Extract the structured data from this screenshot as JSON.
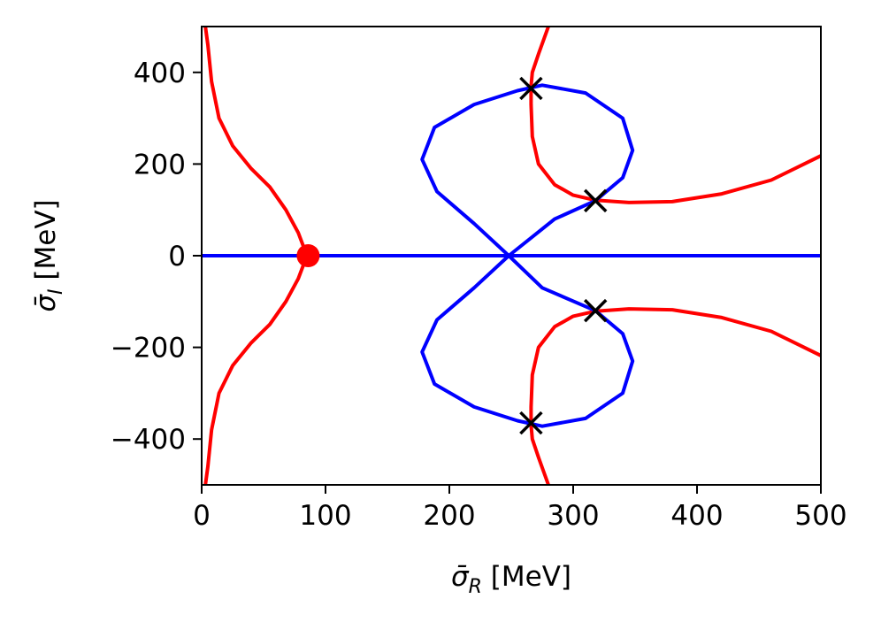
{
  "chart_data": {
    "type": "line",
    "title": "",
    "xlabel_parts": {
      "main": "σ̄",
      "sub": "R",
      "unit": " [MeV]"
    },
    "ylabel_parts": {
      "main": "σ̄",
      "sub": "I",
      "unit": " [MeV]"
    },
    "xlim": [
      0,
      500
    ],
    "ylim": [
      -500,
      500
    ],
    "xticks": [
      0,
      100,
      200,
      300,
      400,
      500
    ],
    "yticks": [
      -400,
      -200,
      0,
      200,
      400
    ],
    "xtick_labels": [
      "0",
      "100",
      "200",
      "300",
      "400",
      "500"
    ],
    "ytick_labels": [
      "−400",
      "−200",
      "0",
      "200",
      "400"
    ],
    "grid": false,
    "colors": {
      "red": "#ff0000",
      "blue": "#0000ff",
      "marker": "#000000"
    },
    "series": [
      {
        "color": "red",
        "points": [
          [
            3,
            500
          ],
          [
            5,
            460
          ],
          [
            8,
            380
          ],
          [
            14,
            300
          ],
          [
            25,
            240
          ],
          [
            40,
            190
          ],
          [
            55,
            150
          ],
          [
            68,
            100
          ],
          [
            78,
            50
          ],
          [
            85,
            0
          ],
          [
            78,
            -50
          ],
          [
            68,
            -100
          ],
          [
            55,
            -150
          ],
          [
            40,
            -190
          ],
          [
            25,
            -240
          ],
          [
            14,
            -300
          ],
          [
            8,
            -380
          ],
          [
            5,
            -460
          ],
          [
            3,
            -500
          ]
        ]
      },
      {
        "color": "red",
        "points": [
          [
            280,
            500
          ],
          [
            272,
            440
          ],
          [
            267,
            400
          ],
          [
            266,
            370
          ],
          [
            266,
            330
          ],
          [
            267,
            260
          ],
          [
            272,
            200
          ],
          [
            285,
            155
          ],
          [
            300,
            132
          ],
          [
            318,
            121
          ],
          [
            345,
            116
          ],
          [
            380,
            118
          ],
          [
            420,
            135
          ],
          [
            460,
            165
          ],
          [
            500,
            218
          ]
        ]
      },
      {
        "color": "red",
        "points": [
          [
            280,
            -500
          ],
          [
            272,
            -440
          ],
          [
            267,
            -400
          ],
          [
            266,
            -370
          ],
          [
            266,
            -330
          ],
          [
            267,
            -260
          ],
          [
            272,
            -200
          ],
          [
            285,
            -155
          ],
          [
            300,
            -132
          ],
          [
            318,
            -121
          ],
          [
            345,
            -116
          ],
          [
            380,
            -118
          ],
          [
            420,
            -135
          ],
          [
            460,
            -165
          ],
          [
            500,
            -218
          ]
        ]
      },
      {
        "color": "blue",
        "points": [
          [
            248,
            0
          ],
          [
            285,
            80
          ],
          [
            318,
            120
          ],
          [
            340,
            170
          ],
          [
            348,
            230
          ],
          [
            340,
            300
          ],
          [
            310,
            355
          ],
          [
            275,
            372
          ],
          [
            255,
            360
          ],
          [
            220,
            330
          ],
          [
            188,
            280
          ],
          [
            178,
            210
          ],
          [
            190,
            140
          ],
          [
            220,
            70
          ],
          [
            248,
            0
          ],
          [
            275,
            -70
          ],
          [
            318,
            -120
          ],
          [
            340,
            -170
          ],
          [
            348,
            -230
          ],
          [
            340,
            -300
          ],
          [
            310,
            -355
          ],
          [
            275,
            -372
          ],
          [
            255,
            -360
          ],
          [
            220,
            -330
          ],
          [
            188,
            -280
          ],
          [
            178,
            -210
          ],
          [
            190,
            -140
          ],
          [
            220,
            -70
          ],
          [
            248,
            0
          ]
        ]
      },
      {
        "color": "blue",
        "points": [
          [
            0,
            0
          ],
          [
            500,
            0
          ]
        ]
      }
    ],
    "markers_x": [
      [
        266,
        365
      ],
      [
        318,
        120
      ],
      [
        318,
        -120
      ],
      [
        266,
        -365
      ]
    ],
    "marker_dot": [
      86,
      0
    ]
  }
}
